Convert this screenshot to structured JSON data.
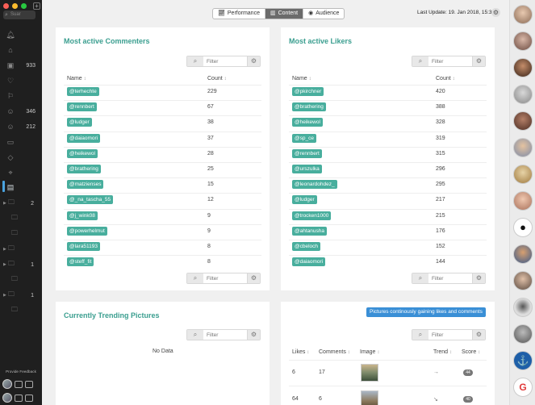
{
  "sidebar": {
    "search_placeholder": "Suar",
    "items": [
      {
        "icon": "bell-icon",
        "count": ""
      },
      {
        "icon": "home-icon",
        "count": ""
      },
      {
        "icon": "inbox-icon",
        "count": "933"
      },
      {
        "icon": "heart-icon",
        "count": ""
      },
      {
        "icon": "bookmark-icon",
        "count": ""
      },
      {
        "icon": "user-add-icon",
        "count": "346"
      },
      {
        "icon": "user-icon",
        "count": "212"
      },
      {
        "icon": "image-icon",
        "count": ""
      },
      {
        "icon": "tag-icon",
        "count": ""
      },
      {
        "icon": "location-icon",
        "count": ""
      },
      {
        "icon": "stats-icon",
        "count": ""
      }
    ],
    "folders": [
      {
        "count": "2"
      },
      {
        "count": ""
      },
      {
        "count": ""
      },
      {
        "count": ""
      },
      {
        "count": "1"
      },
      {
        "count": ""
      },
      {
        "count": "1"
      },
      {
        "count": ""
      }
    ],
    "feedback_label": "Provide Feedback"
  },
  "topbar": {
    "tabs": [
      {
        "label": "Performance",
        "icon": "chart-icon"
      },
      {
        "label": "Content",
        "icon": "bars-icon"
      },
      {
        "label": "Audience",
        "icon": "audience-icon"
      }
    ],
    "active_tab": "Content",
    "last_update": "Last Update: 19. Jan 2018, 15:36"
  },
  "commenters": {
    "title": "Most active Commenters",
    "filter_placeholder": "Filter",
    "col_name": "Name",
    "col_count": "Count",
    "rows": [
      {
        "name": "@terhechte",
        "count": "229"
      },
      {
        "name": "@rennbert",
        "count": "67"
      },
      {
        "name": "@ludger",
        "count": "38"
      },
      {
        "name": "@daiaomori",
        "count": "37"
      },
      {
        "name": "@heikewol",
        "count": "28"
      },
      {
        "name": "@brathering",
        "count": "25"
      },
      {
        "name": "@matzienses",
        "count": "15"
      },
      {
        "name": "@_na_tascha_55",
        "count": "12"
      },
      {
        "name": "@j_wink08",
        "count": "9"
      },
      {
        "name": "@powerhelmut",
        "count": "9"
      },
      {
        "name": "@lara51193",
        "count": "8"
      },
      {
        "name": "@steff_fit",
        "count": "8"
      }
    ]
  },
  "likers": {
    "title": "Most active Likers",
    "filter_placeholder": "Filter",
    "col_name": "Name",
    "col_count": "Count",
    "rows": [
      {
        "name": "@pkirchner",
        "count": "420"
      },
      {
        "name": "@brathering",
        "count": "388"
      },
      {
        "name": "@heikewol",
        "count": "328"
      },
      {
        "name": "@sp_ce",
        "count": "319"
      },
      {
        "name": "@rennbert",
        "count": "315"
      },
      {
        "name": "@urszulka",
        "count": "296"
      },
      {
        "name": "@leonardohdez_",
        "count": "295"
      },
      {
        "name": "@ludger",
        "count": "217"
      },
      {
        "name": "@trocken1000",
        "count": "215"
      },
      {
        "name": "@ahtanusha",
        "count": "176"
      },
      {
        "name": "@cbeloch",
        "count": "152"
      },
      {
        "name": "@daiaomori",
        "count": "144"
      }
    ]
  },
  "trending": {
    "title": "Currently Trending Pictures",
    "filter_placeholder": "Filter",
    "no_data": "No Data"
  },
  "gaining": {
    "button_label": "Pictures continously gaining likes and comments",
    "filter_placeholder": "Filter",
    "col_likes": "Likes",
    "col_comments": "Comments",
    "col_image": "Image",
    "col_trend": "Trend",
    "col_score": "Score",
    "rows": [
      {
        "likes": "6",
        "comments": "17",
        "trend": "→",
        "score": "44"
      },
      {
        "likes": "64",
        "comments": "6",
        "trend": "↘",
        "score": "40"
      }
    ]
  },
  "colors": {
    "accent": "#3a9e8f",
    "tag": "#48ae9d",
    "button_blue": "#3a8fd6",
    "sidebar_bg": "#1f1f1f"
  }
}
